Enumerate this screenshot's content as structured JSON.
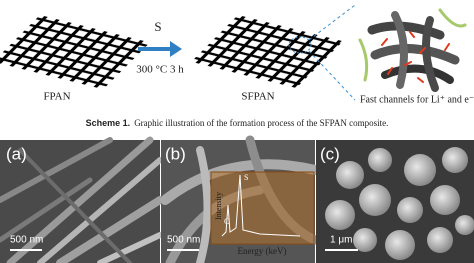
{
  "scheme": {
    "reagent": "S",
    "condition": "300 °C 3 h",
    "labels": [
      "FPAN",
      "SFPAN"
    ],
    "callout": "Fast channels for Li⁺ and e⁻"
  },
  "caption": {
    "label": "Scheme 1.",
    "text": "Graphic illustration of the formation process of the SFPAN composite."
  },
  "panels": [
    {
      "label": "(a)",
      "scale_bar": "500 nm"
    },
    {
      "label": "(b)",
      "scale_bar": "500 nm",
      "inset": {
        "y_label": "Intensity",
        "x_label": "Energy (keV)",
        "peaks": [
          "S",
          "C"
        ]
      }
    },
    {
      "label": "(c)",
      "scale_bar": "1 μm"
    }
  ]
}
